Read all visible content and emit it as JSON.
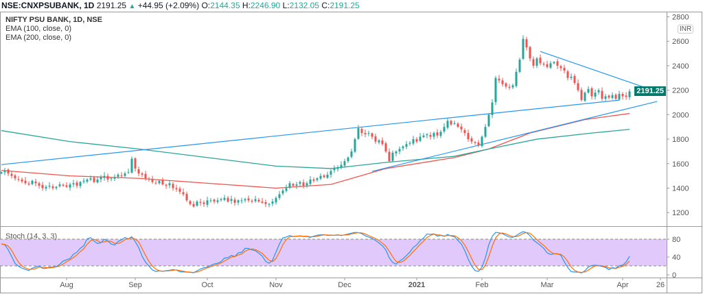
{
  "header": {
    "symbol": "NSE:CNXPSUBANK, 1D",
    "last": "2191.25",
    "change": "+44.95 (+2.09%)",
    "o_label": "O:",
    "o": "2144.35",
    "h_label": "H:",
    "h": "2246.90",
    "l_label": "L:",
    "l": "2132.05",
    "c_label": "C:",
    "c": "2191.25",
    "up_icon": "▲"
  },
  "legend": {
    "title": "NIFTY PSU BANK, 1D, NSE",
    "ema100": "EMA (100, close, 0)",
    "ema200": "EMA (200, close, 0)",
    "stoch": "Stoch (14, 3, 3)"
  },
  "currency": "INR",
  "price_tag": "2191.25",
  "colors": {
    "up": "#26a69a",
    "down": "#ef5350",
    "ema100": "#f0554f",
    "ema200": "#26a69a",
    "trend": "#2196f3",
    "stochK": "#2196f3",
    "stochD": "#ff6d00",
    "band": "#e1c9fb"
  },
  "chart_data": {
    "type": "candlestick",
    "title": "NIFTY PSU BANK, 1D, NSE",
    "ylim": [
      1100,
      2850
    ],
    "yticks": [
      1200,
      1400,
      1600,
      1800,
      2000,
      2200,
      2400,
      2600,
      2800
    ],
    "stoch_ticks": [
      0,
      40,
      80
    ],
    "stoch_bands": [
      20,
      80
    ],
    "x_ticks": [
      {
        "label": "Aug",
        "index": 19
      },
      {
        "label": "Sep",
        "index": 39
      },
      {
        "label": "Oct",
        "index": 60
      },
      {
        "label": "Nov",
        "index": 80
      },
      {
        "label": "Dec",
        "index": 100
      },
      {
        "label": "2021",
        "index": 121
      },
      {
        "label": "Feb",
        "index": 140
      },
      {
        "label": "Mar",
        "index": 159
      },
      {
        "label": "Apr",
        "index": 181
      },
      {
        "label": "26",
        "index": 192
      }
    ],
    "closes": [
      1530,
      1545,
      1520,
      1500,
      1480,
      1470,
      1455,
      1440,
      1430,
      1460,
      1440,
      1420,
      1400,
      1410,
      1420,
      1400,
      1410,
      1430,
      1420,
      1410,
      1430,
      1440,
      1420,
      1450,
      1460,
      1470,
      1480,
      1450,
      1470,
      1490,
      1500,
      1470,
      1480,
      1490,
      1510,
      1500,
      1520,
      1530,
      1640,
      1560,
      1520,
      1510,
      1480,
      1470,
      1450,
      1440,
      1460,
      1430,
      1420,
      1440,
      1400,
      1390,
      1370,
      1350,
      1300,
      1270,
      1250,
      1290,
      1280,
      1270,
      1300,
      1300,
      1290,
      1300,
      1310,
      1320,
      1290,
      1310,
      1280,
      1300,
      1300,
      1310,
      1300,
      1290,
      1310,
      1290,
      1280,
      1270,
      1270,
      1290,
      1320,
      1350,
      1380,
      1400,
      1440,
      1420,
      1430,
      1450,
      1420,
      1440,
      1470,
      1460,
      1480,
      1500,
      1490,
      1510,
      1540,
      1560,
      1570,
      1590,
      1620,
      1650,
      1700,
      1800,
      1890,
      1850,
      1840,
      1850,
      1820,
      1780,
      1790,
      1760,
      1700,
      1620,
      1690,
      1700,
      1720,
      1740,
      1760,
      1770,
      1800,
      1780,
      1820,
      1830,
      1840,
      1820,
      1850,
      1830,
      1860,
      1900,
      1950,
      1920,
      1930,
      1900,
      1880,
      1850,
      1800,
      1780,
      1770,
      1750,
      1820,
      1900,
      2000,
      2100,
      2300,
      2280,
      2250,
      2230,
      2220,
      2240,
      2350,
      2450,
      2620,
      2550,
      2460,
      2400,
      2460,
      2420,
      2410,
      2390,
      2420,
      2430,
      2400,
      2380,
      2360,
      2300,
      2310,
      2260,
      2200,
      2120,
      2180,
      2210,
      2150,
      2180,
      2200,
      2130,
      2150,
      2140,
      2160,
      2130,
      2170,
      2150,
      2146,
      2191
    ],
    "ema100": [
      [
        0,
        1545
      ],
      [
        20,
        1500
      ],
      [
        40,
        1480
      ],
      [
        60,
        1440
      ],
      [
        80,
        1400
      ],
      [
        96,
        1430
      ],
      [
        112,
        1560
      ],
      [
        132,
        1650
      ],
      [
        142,
        1720
      ],
      [
        154,
        1850
      ],
      [
        170,
        1960
      ],
      [
        183,
        2010
      ]
    ],
    "ema200": [
      [
        0,
        1870
      ],
      [
        20,
        1780
      ],
      [
        40,
        1720
      ],
      [
        60,
        1650
      ],
      [
        80,
        1580
      ],
      [
        96,
        1560
      ],
      [
        112,
        1610
      ],
      [
        132,
        1660
      ],
      [
        142,
        1720
      ],
      [
        156,
        1800
      ],
      [
        172,
        1850
      ],
      [
        183,
        1880
      ]
    ],
    "trendlines": [
      [
        [
          0,
          1592
        ],
        [
          180,
          2119
        ]
      ],
      [
        [
          108,
          1537
        ],
        [
          191,
          2108
        ]
      ],
      [
        [
          157,
          2517
        ],
        [
          190.6,
          2192
        ]
      ]
    ]
  }
}
